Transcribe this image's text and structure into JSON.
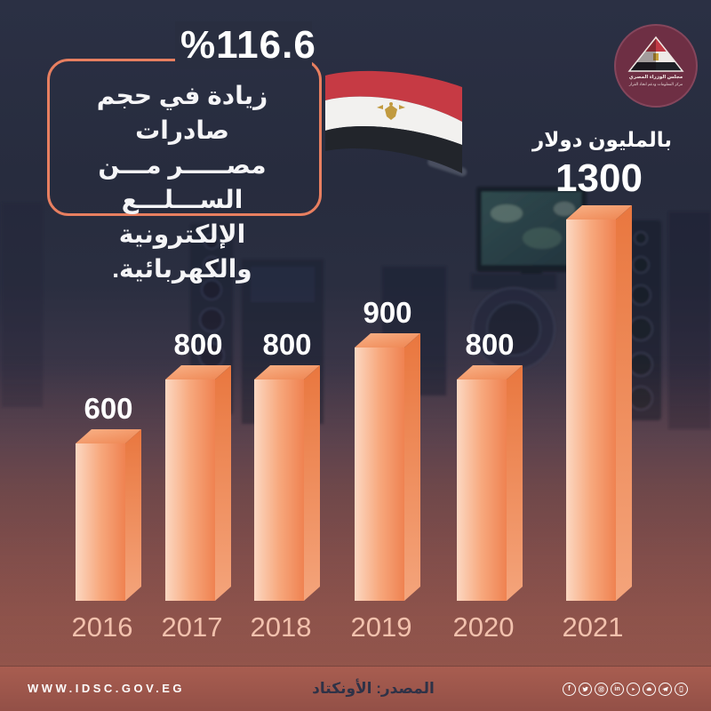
{
  "header": {
    "percent_label": "%116.6",
    "description_lines": [
      "زيادة في حجم صادرات",
      "مصـــــر مـــن الســـلـــع",
      "الإلكترونية والكهربائية."
    ],
    "units_label": "بالمليون دولار"
  },
  "badge": {
    "org_line1": "مجلس الوزراء المصري",
    "org_line2": "مركز المعلومات ودعم اتخاذ القرار"
  },
  "chart_data": {
    "type": "bar",
    "categories": [
      "2016",
      "2017",
      "2018",
      "2019",
      "2020",
      "2021"
    ],
    "values": [
      600,
      800,
      800,
      900,
      800,
      1300
    ],
    "title": "%116.6 زيادة في حجم صادرات مصر من السلع الإلكترونية والكهربائية.",
    "xlabel": "",
    "ylabel": "بالمليون دولار",
    "ylim": [
      0,
      1300
    ],
    "grid": false,
    "legend": false,
    "bar_color": "#f08c5c",
    "highlight_category": "2021"
  },
  "footer": {
    "website": "WWW.IDSC.GOV.EG",
    "source": "المصدر: الأونكتاد",
    "social_icons": [
      "facebook",
      "twitter",
      "instagram",
      "linkedin",
      "youtube",
      "soundcloud",
      "telegram",
      "mobile-app"
    ]
  },
  "colors": {
    "background_top": "#2b3044",
    "background_bottom": "#98574c",
    "accent_border": "#e87f60",
    "bar_light": "#fcd8c2",
    "bar_dark": "#ef8251",
    "year_label": "#f2c1ad",
    "footer_bg": "#a05a4e",
    "source_text": "#2e3247",
    "badge_bg": "#6e2f44",
    "flag_red": "#c63a44",
    "flag_black": "#22252b"
  }
}
